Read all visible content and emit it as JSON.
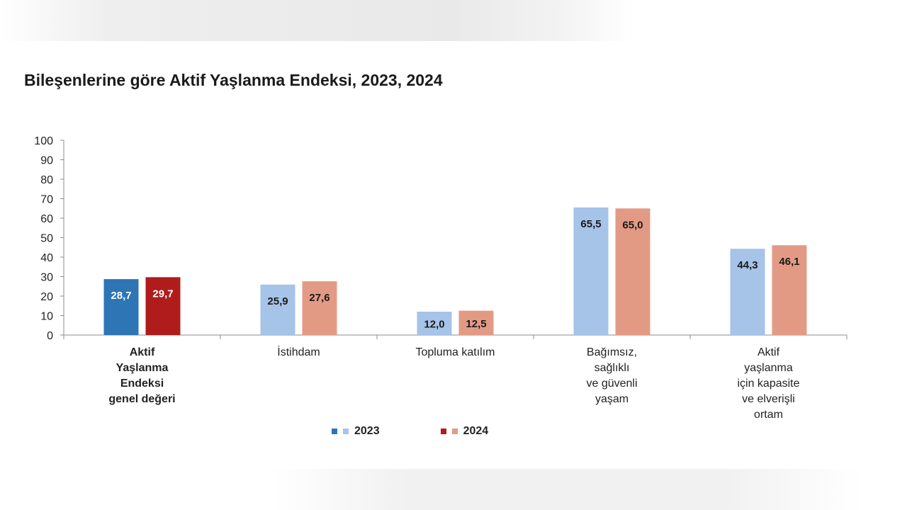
{
  "chart_data": {
    "type": "bar",
    "title": "Bileşenlerine göre Aktif Yaşlanma Endeksi, 2023, 2024",
    "xlabel": "",
    "ylabel": "",
    "ylim": [
      0,
      100
    ],
    "yticks": [
      "0",
      "10",
      "20",
      "30",
      "40",
      "50",
      "60",
      "70",
      "80",
      "90",
      "100"
    ],
    "grid": false,
    "legend_position": "bottom",
    "categories": [
      "Aktif\nYaşlanma\nEndeksi\ngenel değeri",
      "İstihdam",
      "Topluma katılım",
      "Bağımsız,\nsağlıklı\nve güvenli\nyaşam",
      "Aktif\nyaşlanma\niçin kapasite\nve elverişli\nortam"
    ],
    "series": [
      {
        "name": "2023",
        "values": [
          28.7,
          25.9,
          12.0,
          65.5,
          44.3
        ],
        "data_labels": [
          "28,7",
          "25,9",
          "12,0",
          "65,5",
          "44,3"
        ],
        "color": "#a6c3e8",
        "highlight_color": "#2e75b6"
      },
      {
        "name": "2024",
        "values": [
          29.7,
          27.6,
          12.5,
          65.0,
          46.1
        ],
        "data_labels": [
          "29,7",
          "27,6",
          "12,5",
          "65,0",
          "46,1"
        ],
        "color": "#e39a85",
        "highlight_color": "#b01c1c"
      }
    ],
    "highlighted_category_index": 0
  }
}
